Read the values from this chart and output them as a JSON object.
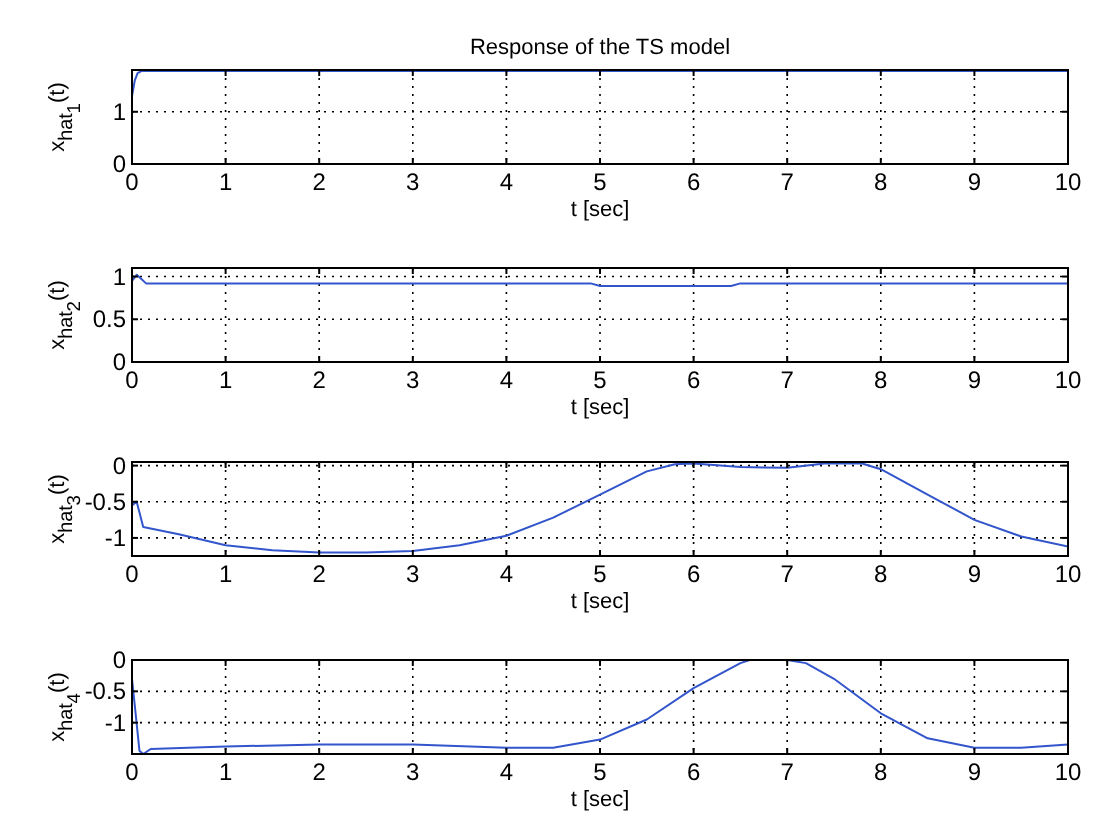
{
  "chart_data": [
    {
      "type": "line",
      "title": "Response of the TS model",
      "xlabel": "t [sec]",
      "ylabel": "x$_{hat}$$_{1}$(t)",
      "xlim": [
        0,
        10
      ],
      "xticks": [
        0,
        1,
        2,
        3,
        4,
        5,
        6,
        7,
        8,
        9,
        10
      ],
      "ylim": [
        0,
        1.8
      ],
      "yticks": [
        0,
        1
      ],
      "grid": true,
      "series": [
        {
          "color": "#3355cc",
          "x": [
            0,
            0.03,
            0.06,
            0.1,
            0.2,
            1,
            2,
            3,
            4,
            5,
            6,
            7,
            8,
            9,
            10
          ],
          "values": [
            1.3,
            1.6,
            1.74,
            1.78,
            1.78,
            1.78,
            1.78,
            1.78,
            1.78,
            1.78,
            1.78,
            1.78,
            1.78,
            1.78,
            1.78
          ]
        }
      ]
    },
    {
      "type": "line",
      "xlabel": "t [sec]",
      "ylabel": "x$_{hat}$$_{2}$(t)",
      "xlim": [
        0,
        10
      ],
      "xticks": [
        0,
        1,
        2,
        3,
        4,
        5,
        6,
        7,
        8,
        9,
        10
      ],
      "ylim": [
        0,
        1.1
      ],
      "yticks": [
        0,
        0.5,
        1
      ],
      "grid": true,
      "series": [
        {
          "color": "#3355cc",
          "x": [
            0,
            0.05,
            0.1,
            0.15,
            0.5,
            1,
            2,
            3,
            4,
            4.9,
            5,
            6,
            6.4,
            6.5,
            7,
            8,
            9,
            10
          ],
          "values": [
            0.95,
            1.02,
            0.97,
            0.92,
            0.92,
            0.92,
            0.92,
            0.92,
            0.92,
            0.92,
            0.89,
            0.89,
            0.89,
            0.92,
            0.92,
            0.92,
            0.92,
            0.92
          ]
        }
      ]
    },
    {
      "type": "line",
      "xlabel": "t [sec]",
      "ylabel": "x$_{hat}$$_{3}$(t)",
      "xlim": [
        0,
        10
      ],
      "xticks": [
        0,
        1,
        2,
        3,
        4,
        5,
        6,
        7,
        8,
        9,
        10
      ],
      "ylim": [
        -1.25,
        0.05
      ],
      "yticks": [
        -1,
        -0.5,
        0
      ],
      "grid": true,
      "series": [
        {
          "color": "#3355cc",
          "x": [
            0,
            0.05,
            0.12,
            0.5,
            1,
            1.5,
            2,
            2.5,
            3,
            3.5,
            4,
            4.5,
            5,
            5.5,
            5.8,
            6,
            6.5,
            7,
            7.4,
            7.8,
            8,
            8.5,
            9,
            9.5,
            10
          ],
          "values": [
            -0.55,
            -0.5,
            -0.85,
            -0.95,
            -1.1,
            -1.17,
            -1.2,
            -1.2,
            -1.18,
            -1.1,
            -0.97,
            -0.72,
            -0.4,
            -0.08,
            0.02,
            0.03,
            -0.02,
            -0.03,
            0.03,
            0.03,
            -0.05,
            -0.4,
            -0.75,
            -0.98,
            -1.12
          ]
        }
      ]
    },
    {
      "type": "line",
      "xlabel": "t [sec]",
      "ylabel": "x$_{hat}$$_{4}$(t)",
      "xlim": [
        0,
        10
      ],
      "xticks": [
        0,
        1,
        2,
        3,
        4,
        5,
        6,
        7,
        8,
        9,
        10
      ],
      "ylim": [
        -1.5,
        0
      ],
      "yticks": [
        -1,
        -0.5,
        0
      ],
      "grid": true,
      "series": [
        {
          "color": "#3355cc",
          "x": [
            0,
            0.08,
            0.12,
            0.2,
            1,
            2,
            3,
            4,
            4.5,
            5,
            5.5,
            6,
            6.5,
            6.6,
            7,
            7.2,
            7.5,
            8,
            8.5,
            9,
            9.5,
            10
          ],
          "values": [
            -0.3,
            -1.45,
            -1.5,
            -1.42,
            -1.38,
            -1.35,
            -1.35,
            -1.4,
            -1.4,
            -1.27,
            -0.95,
            -0.45,
            -0.05,
            0,
            0,
            -0.05,
            -0.3,
            -0.85,
            -1.25,
            -1.4,
            -1.4,
            -1.35
          ]
        }
      ]
    }
  ]
}
